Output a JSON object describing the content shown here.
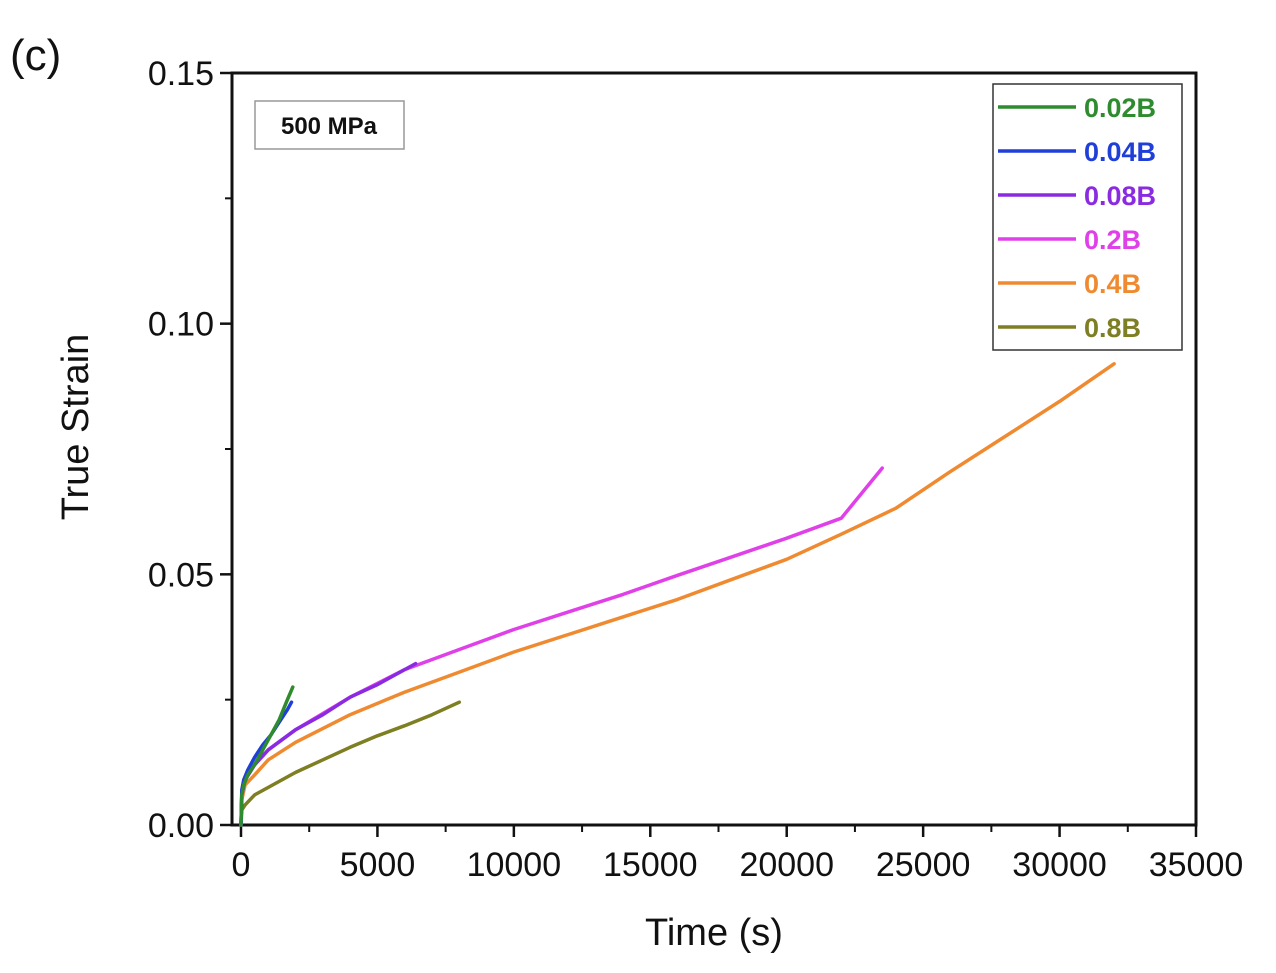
{
  "panel_label": "(c)",
  "annotation": "500 MPa",
  "chart_data": {
    "type": "line",
    "title": "",
    "xlabel": "Time (s)",
    "ylabel": "True Strain",
    "xlim": [
      0,
      35000
    ],
    "ylim": [
      0,
      0.15
    ],
    "xticks": [
      0,
      5000,
      10000,
      15000,
      20000,
      25000,
      30000,
      35000
    ],
    "xtick_labels": [
      "0",
      "5000",
      "10000",
      "15000",
      "20000",
      "25000",
      "30000",
      "35000"
    ],
    "yticks": [
      0,
      0.05,
      0.1,
      0.15
    ],
    "ytick_labels": [
      "0.00",
      "0.05",
      "0.10",
      "0.15"
    ],
    "grid": false,
    "legend_position": "top-right",
    "series": [
      {
        "name": "0.02B",
        "color": "#2e8b2e",
        "x": [
          0,
          30,
          100,
          250,
          500,
          800,
          1100,
          1400,
          1700,
          1900
        ],
        "y": [
          0.0,
          0.006,
          0.008,
          0.01,
          0.012,
          0.015,
          0.018,
          0.021,
          0.025,
          0.0275
        ]
      },
      {
        "name": "0.04B",
        "color": "#1f3fd8",
        "x": [
          0,
          30,
          100,
          250,
          500,
          800,
          1100,
          1400,
          1700,
          1850
        ],
        "y": [
          0.0,
          0.007,
          0.009,
          0.011,
          0.0135,
          0.016,
          0.018,
          0.0205,
          0.023,
          0.0245
        ]
      },
      {
        "name": "0.08B",
        "color": "#8a2be2",
        "x": [
          0,
          30,
          150,
          500,
          1000,
          2000,
          3000,
          4000,
          5000,
          6400
        ],
        "y": [
          0.0,
          0.006,
          0.009,
          0.012,
          0.015,
          0.019,
          0.022,
          0.0255,
          0.028,
          0.0322
        ]
      },
      {
        "name": "0.2B",
        "color": "#e040e8",
        "x": [
          0,
          30,
          150,
          500,
          1000,
          2000,
          4000,
          6000,
          8000,
          10000,
          12000,
          14000,
          16000,
          18000,
          20000,
          22000,
          23500
        ],
        "y": [
          0.0,
          0.006,
          0.009,
          0.012,
          0.015,
          0.019,
          0.0255,
          0.031,
          0.035,
          0.039,
          0.0425,
          0.046,
          0.0498,
          0.0535,
          0.0572,
          0.0612,
          0.0712
        ]
      },
      {
        "name": "0.4B",
        "color": "#f08a30",
        "x": [
          0,
          30,
          150,
          500,
          1000,
          2000,
          4000,
          6000,
          8000,
          10000,
          12000,
          14000,
          16000,
          18000,
          20000,
          22000,
          24000,
          26000,
          28000,
          30000,
          32000
        ],
        "y": [
          0.0,
          0.005,
          0.008,
          0.01,
          0.013,
          0.0165,
          0.022,
          0.0265,
          0.0305,
          0.0345,
          0.038,
          0.0415,
          0.045,
          0.049,
          0.053,
          0.058,
          0.0632,
          0.0705,
          0.0775,
          0.0845,
          0.092
        ]
      },
      {
        "name": "0.8B",
        "color": "#7e7e22",
        "x": [
          0,
          30,
          150,
          500,
          1000,
          2000,
          3000,
          4000,
          5000,
          6000,
          7000,
          8000
        ],
        "y": [
          0.0,
          0.003,
          0.004,
          0.006,
          0.0075,
          0.0105,
          0.013,
          0.0155,
          0.0178,
          0.0198,
          0.022,
          0.0245
        ]
      }
    ]
  }
}
